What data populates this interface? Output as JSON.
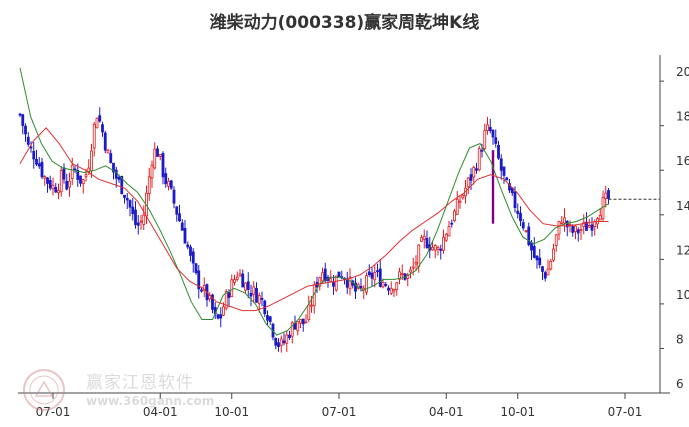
{
  "chart_data": {
    "type": "candlestick",
    "title": "潍柴动力(000338)赢家周乾坤K线",
    "ylim": [
      6,
      20.5
    ],
    "y_ticks": [
      6,
      8,
      10,
      12,
      14,
      16,
      18,
      20
    ],
    "x_ticks": [
      "07-01",
      "04-01",
      "10-01",
      "07-01",
      "04-01",
      "10-01",
      "07-01"
    ],
    "x_tick_weeks": [
      12,
      51,
      77,
      116,
      155,
      181,
      220
    ],
    "last_close": 14.7,
    "up_color": "#e41a1c",
    "down_color": "#1a1ac8",
    "special_bar_color": "#800080",
    "ma_short_color": "#2e8b2e",
    "ma_long_color": "#e03030",
    "dashed_line_color": "#333333",
    "closes": [
      18.5,
      17.8,
      17.0,
      16.8,
      16.5,
      16.0,
      15.6,
      15.4,
      15.2,
      15.4,
      15.8,
      15.3,
      15.9,
      16.0,
      15.6,
      15.5,
      16.2,
      17.5,
      18.6,
      18.0,
      17.2,
      16.4,
      15.9,
      15.5,
      15.2,
      14.8,
      14.2,
      13.6,
      13.5,
      14.0,
      15.3,
      16.6,
      17.0,
      16.3,
      15.6,
      15.2,
      14.6,
      14.0,
      13.4,
      12.8,
      12.0,
      11.3,
      10.9,
      10.6,
      10.3,
      9.8,
      9.2,
      9.4,
      10.1,
      10.6,
      11.0,
      11.4,
      11.2,
      10.8,
      10.6,
      10.5,
      10.3,
      10.1,
      9.6,
      9.0,
      8.4,
      8.1,
      8.3,
      8.7,
      9.0,
      9.3,
      9.1,
      9.2,
      9.8,
      10.6,
      11.2,
      11.5,
      11.3,
      11.0,
      11.1,
      11.4,
      11.3,
      11.0,
      10.7,
      10.5,
      10.6,
      10.9,
      11.1,
      11.4,
      11.2,
      11.0,
      10.9,
      10.8,
      11.0,
      11.2,
      11.3,
      11.2,
      11.5,
      12.0,
      12.6,
      12.9,
      12.7,
      12.5,
      12.4,
      12.8,
      13.3,
      13.7,
      14.1,
      14.6,
      15.0,
      15.4,
      15.8,
      16.3,
      16.9,
      17.6,
      17.9,
      17.3,
      16.6,
      15.9,
      15.3,
      14.8,
      14.5,
      14.1,
      13.6,
      13.0,
      12.4,
      11.9,
      11.6,
      11.3,
      11.6,
      12.4,
      13.2,
      13.9,
      13.6,
      13.3,
      13.2,
      13.3,
      13.4,
      13.5,
      13.6,
      14.0,
      14.3,
      14.6,
      14.7
    ],
    "special_bar": {
      "week": 172,
      "high": 16.9,
      "low": 13.6
    },
    "ma_short": [
      20.6,
      18.4,
      17.2,
      16.4,
      16.1,
      16.0,
      15.9,
      16.0,
      16.2,
      15.9,
      15.4,
      15.0,
      14.3,
      13.4,
      12.4,
      11.3,
      10.1,
      9.3,
      9.3,
      10.4,
      10.7,
      10.5,
      10.0,
      9.1,
      8.6,
      8.8,
      9.3,
      10.0,
      10.9,
      11.2,
      11.2,
      11.0,
      10.6,
      10.8,
      11.1,
      11.1,
      11.2,
      11.5,
      12.2,
      13.3,
      14.6,
      15.9,
      17.0,
      17.2,
      16.4,
      15.1,
      13.9,
      13.0,
      12.7,
      12.9,
      13.4,
      13.6,
      13.7,
      13.9,
      14.2,
      14.5
    ],
    "ma_long": [
      16.3,
      17.3,
      17.9,
      17.2,
      16.3,
      16.0,
      15.6,
      15.4,
      15.2,
      14.6,
      13.6,
      12.6,
      11.6,
      11.0,
      10.7,
      10.1,
      9.9,
      9.7,
      9.7,
      9.9,
      10.2,
      10.5,
      10.8,
      10.9,
      11.0,
      11.1,
      11.3,
      11.7,
      12.2,
      12.8,
      13.3,
      13.7,
      14.1,
      14.6,
      15.0,
      15.6,
      15.8,
      15.6,
      15.0,
      14.2,
      13.6,
      13.5,
      13.5,
      13.6,
      13.7,
      13.7
    ]
  },
  "watermark": {
    "brand": "赢家江恩软件",
    "url": "www.360gann.com"
  },
  "colors": {
    "axis": "#444444",
    "tick_label": "#333333",
    "title": "#333333"
  }
}
